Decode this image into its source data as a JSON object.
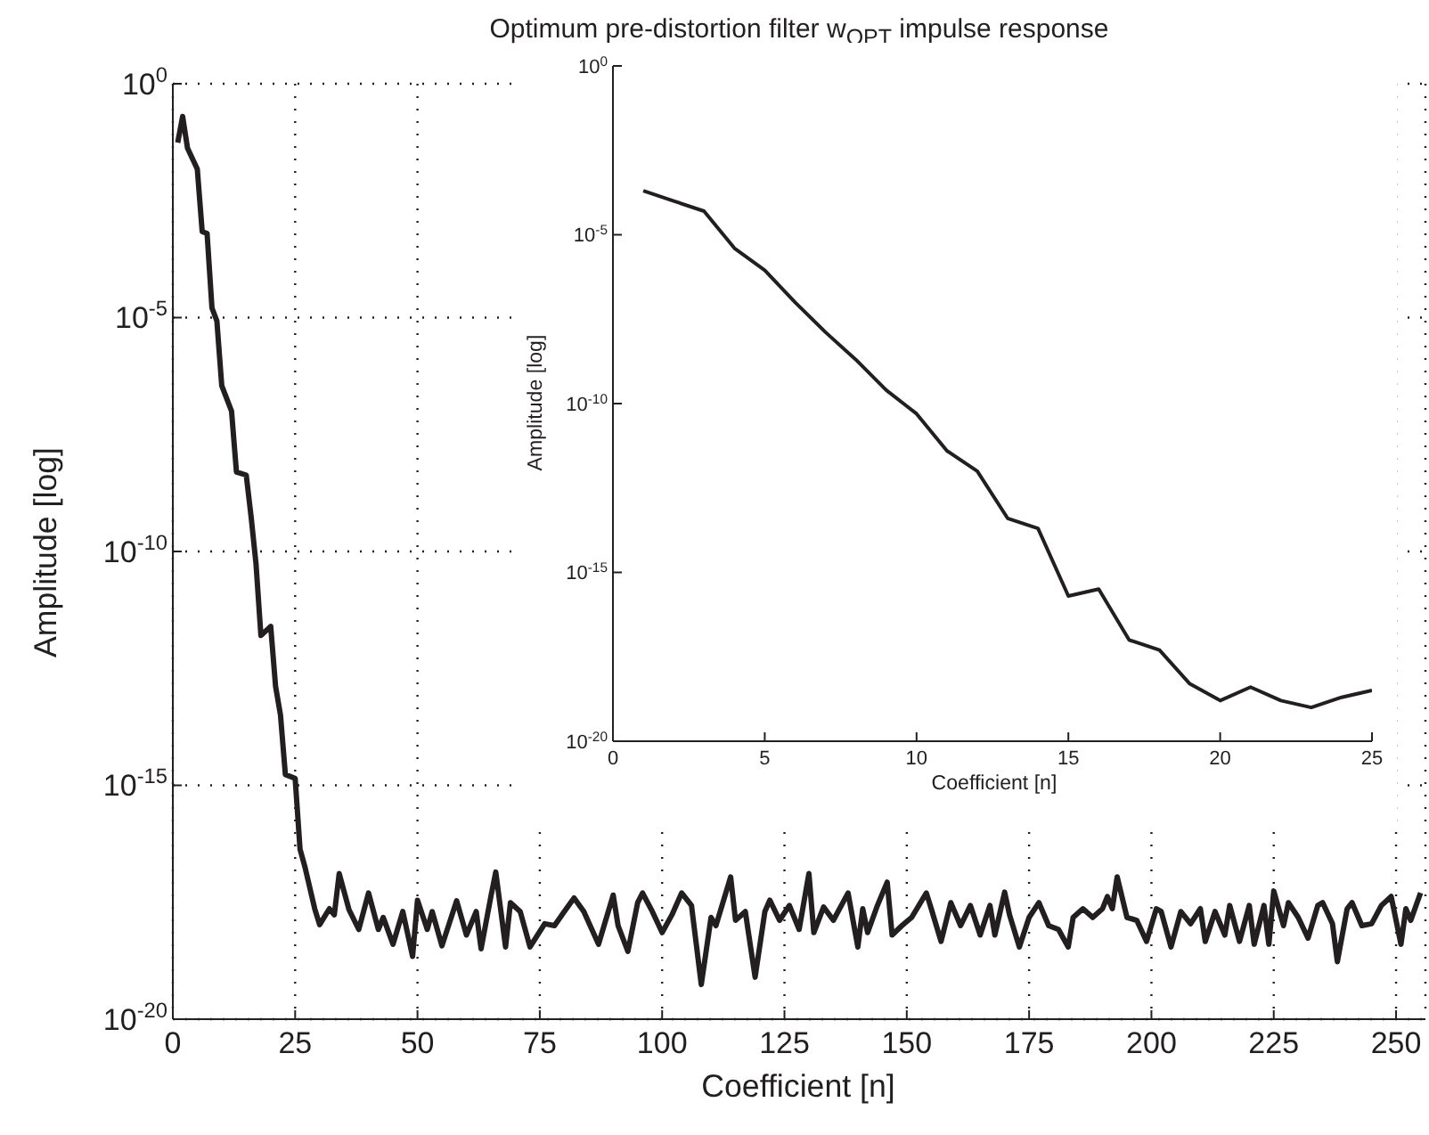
{
  "chart_data": [
    {
      "type": "line",
      "title": "Optimum pre-distortion filter w$_{OPT}$ impulse response",
      "xlabel": "Coefficient [n]",
      "ylabel": "Amplitude [log]",
      "log": "y",
      "grid": true,
      "xlim": [
        0,
        256
      ],
      "xticks": [
        0,
        25,
        50,
        75,
        100,
        125,
        150,
        175,
        200,
        225,
        250
      ],
      "ylim": [
        1e-20,
        1
      ],
      "yticks": [
        {
          "value": 1e-20,
          "label": "10$^{-20}$"
        },
        {
          "value": 1e-15,
          "label": "10$^{-15}$"
        },
        {
          "value": 1e-10,
          "label": "10$^{-10}$"
        },
        {
          "value": 1e-05,
          "label": "10$^{-5}$"
        },
        {
          "value": 1,
          "label": "10$^{0}$"
        }
      ],
      "series": [
        {
          "color": "#231f20",
          "x": [
            1,
            2,
            3,
            5,
            6,
            7,
            8,
            9,
            10,
            12,
            13,
            15,
            16,
            17,
            18,
            20,
            21,
            22,
            23,
            25,
            26,
            27,
            29,
            30,
            32,
            33,
            34,
            36,
            38,
            40,
            42,
            43,
            45,
            47,
            49,
            50,
            52,
            53,
            55,
            58,
            60,
            62,
            63,
            65,
            66,
            68,
            69,
            71,
            73,
            76,
            78,
            80,
            82,
            84,
            87,
            90,
            91,
            93,
            95,
            96,
            98,
            100,
            102,
            104,
            106,
            108,
            110,
            111,
            114,
            115,
            117,
            119,
            121,
            122,
            124,
            126,
            128,
            130,
            131,
            133,
            135,
            138,
            140,
            141,
            142,
            144,
            146,
            147,
            149,
            151,
            154,
            155,
            157,
            159,
            161,
            163,
            165,
            167,
            168,
            170,
            171,
            173,
            175,
            177,
            179,
            181,
            183,
            184,
            186,
            188,
            190,
            191,
            192,
            193,
            195,
            197,
            199,
            201,
            202,
            204,
            206,
            208,
            210,
            211,
            213,
            215,
            216,
            218,
            220,
            221,
            223,
            224,
            225,
            227,
            228,
            230,
            232,
            234,
            235,
            237,
            238,
            240,
            241,
            243,
            245,
            247,
            249,
            251,
            252,
            253,
            255
          ],
          "values": [
            0.055,
            0.2,
            0.042,
            0.015,
            0.00069,
            0.00063,
            1.6e-05,
            8.5e-06,
            3.5e-07,
            1e-07,
            5e-09,
            4.3e-09,
            5.5e-10,
            5.4e-11,
            1.6e-12,
            2.5e-12,
            1.3e-13,
            3.2e-14,
            1.7e-15,
            1.4e-15,
            4.3e-17,
            1.8e-17,
            2.3e-18,
            1.05e-18,
            2.3e-18,
            1.7e-18,
            1.3e-17,
            2.2e-18,
            8.3e-19,
            5e-18,
            8.3e-19,
            1.5e-18,
            4e-19,
            2e-18,
            2.2e-19,
            3.5e-18,
            8.3e-19,
            2e-18,
            3.7e-19,
            3.4e-18,
            6.3e-19,
            2e-18,
            3.2e-19,
            4.2e-18,
            1.4e-17,
            3.5e-19,
            3.1e-18,
            2e-18,
            3.5e-19,
            1.1e-18,
            1e-18,
            2e-18,
            3.9e-18,
            2e-18,
            4e-19,
            4.5e-18,
            1e-18,
            2.8e-19,
            3.1e-18,
            5e-18,
            2e-18,
            7.1e-19,
            1.7e-18,
            5e-18,
            2.7e-18,
            5.5e-20,
            1.5e-18,
            1e-18,
            1.1e-17,
            1.3e-18,
            2e-18,
            7.9e-20,
            2e-18,
            3.5e-18,
            1.3e-18,
            2.7e-18,
            8.3e-19,
            1.3e-17,
            7.1e-19,
            2.5e-18,
            1.3e-18,
            5e-18,
            3.5e-19,
            2.3e-18,
            7.1e-19,
            2.7e-18,
            8.5e-18,
            6.3e-19,
            1e-18,
            1.5e-18,
            5e-18,
            2.3e-18,
            4.6e-19,
            3.1e-18,
            1e-18,
            2.7e-18,
            6.3e-19,
            2.7e-18,
            6.3e-19,
            5.2e-18,
            1.7e-18,
            3.5e-19,
            1.5e-18,
            3.1e-18,
            1e-18,
            8.3e-19,
            3.5e-19,
            1.5e-18,
            2.3e-18,
            1.5e-18,
            2.3e-18,
            4.2e-18,
            2.3e-18,
            1.1e-17,
            1.5e-18,
            1.3e-18,
            4.6e-19,
            2.3e-18,
            2e-18,
            3.5e-19,
            2e-18,
            1.1e-18,
            2.3e-18,
            4.6e-19,
            2e-18,
            6.3e-19,
            2.7e-18,
            4.6e-19,
            2.7e-18,
            4e-19,
            2.7e-18,
            4e-19,
            5.5e-18,
            1e-18,
            3.1e-18,
            1.5e-18,
            5.4e-19,
            2.7e-18,
            3.1e-18,
            1.1e-18,
            1.7e-19,
            2.3e-18,
            3.1e-18,
            1e-18,
            1.1e-18,
            2.7e-18,
            4.2e-18,
            4e-19,
            2.3e-18,
            1.3e-18,
            5e-18
          ]
        }
      ]
    },
    {
      "type": "line",
      "xlabel": "Coefficient [n]",
      "ylabel": "Amplitude [log]",
      "log": "y",
      "xlim": [
        0,
        25
      ],
      "xticks": [
        0,
        5,
        10,
        15,
        20,
        25
      ],
      "ylim": [
        1e-20,
        1
      ],
      "yticks": [
        {
          "value": 1e-20,
          "label": "10$^{-20}$"
        },
        {
          "value": 1e-15,
          "label": "10$^{-15}$"
        },
        {
          "value": 1e-10,
          "label": "10$^{-10}$"
        },
        {
          "value": 1e-05,
          "label": "10$^{-5}$"
        },
        {
          "value": 1,
          "label": "10$^{0}$"
        }
      ],
      "series": [
        {
          "color": "#231f20",
          "x": [
            1,
            2,
            3,
            4,
            5,
            6,
            7,
            8,
            9,
            10,
            11,
            12,
            13,
            14,
            15,
            16,
            17,
            18,
            19,
            20,
            21,
            22,
            23,
            24,
            25
          ],
          "values": [
            0.0002,
            0.0001,
            5e-05,
            4e-06,
            8.9e-07,
            1e-07,
            1.3e-08,
            2e-09,
            2.5e-10,
            5e-11,
            4e-12,
            1e-12,
            4e-14,
            2e-14,
            2e-16,
            3.2e-16,
            1e-17,
            5e-18,
            5e-19,
            1.6e-19,
            4e-19,
            1.6e-19,
            1e-19,
            2e-19,
            3.2e-19
          ]
        }
      ]
    }
  ]
}
